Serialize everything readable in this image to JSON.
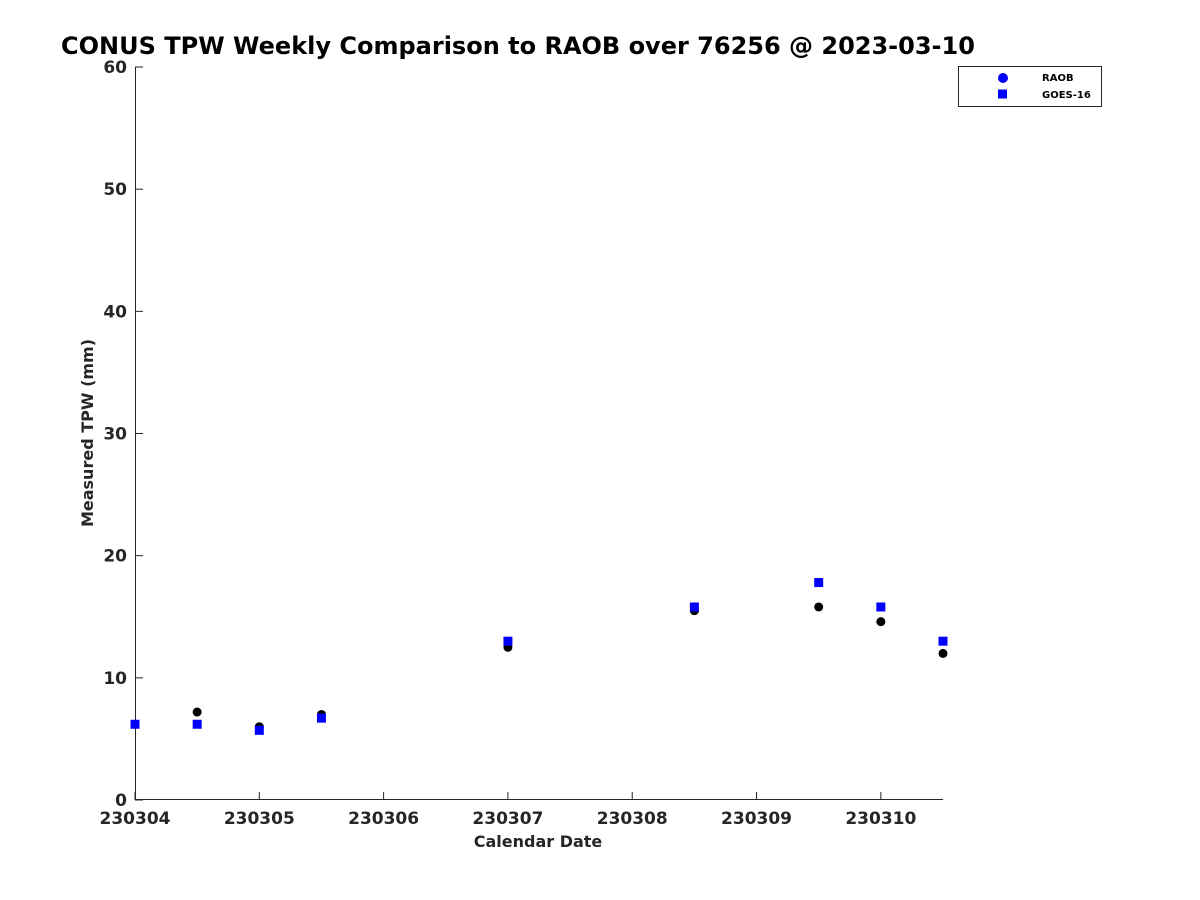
{
  "chart_data": {
    "type": "scatter",
    "title": "CONUS TPW Weekly Comparison to RAOB over 76256 @ 2023-03-10",
    "xlabel": "Calendar Date",
    "ylabel": "Measured TPW (mm)",
    "xlim": [
      230304,
      230310.5
    ],
    "ylim": [
      0,
      60
    ],
    "grid": false,
    "legend_position": "top-right",
    "x_ticks": [
      {
        "value": 230304,
        "label": "230304"
      },
      {
        "value": 230305,
        "label": "230305"
      },
      {
        "value": 230306,
        "label": "230306"
      },
      {
        "value": 230307,
        "label": "230307"
      },
      {
        "value": 230308,
        "label": "230308"
      },
      {
        "value": 230309,
        "label": "230309"
      },
      {
        "value": 230310,
        "label": "230310"
      }
    ],
    "y_ticks": [
      {
        "value": 0,
        "label": "0"
      },
      {
        "value": 10,
        "label": "10"
      },
      {
        "value": 20,
        "label": "20"
      },
      {
        "value": 30,
        "label": "30"
      },
      {
        "value": 40,
        "label": "40"
      },
      {
        "value": 50,
        "label": "50"
      },
      {
        "value": 60,
        "label": "60"
      }
    ],
    "series": [
      {
        "name": "RAOB",
        "marker": "circle",
        "color": "#000000",
        "legend_color": "#0000ff",
        "x": [
          230304,
          230304.5,
          230305,
          230305.5,
          230307,
          230308.5,
          230309.5,
          230310,
          230310.5
        ],
        "y": [
          6.2,
          7.2,
          6.0,
          7.0,
          12.5,
          15.5,
          15.8,
          14.6,
          12.0
        ]
      },
      {
        "name": "GOES-16",
        "marker": "square",
        "color": "#0000ff",
        "legend_color": "#0000ff",
        "x": [
          230304,
          230304.5,
          230305,
          230305.5,
          230307,
          230308.5,
          230309.5,
          230310,
          230310.5
        ],
        "y": [
          6.2,
          6.2,
          5.7,
          6.7,
          13.0,
          15.8,
          17.8,
          15.8,
          13.0
        ]
      }
    ]
  }
}
